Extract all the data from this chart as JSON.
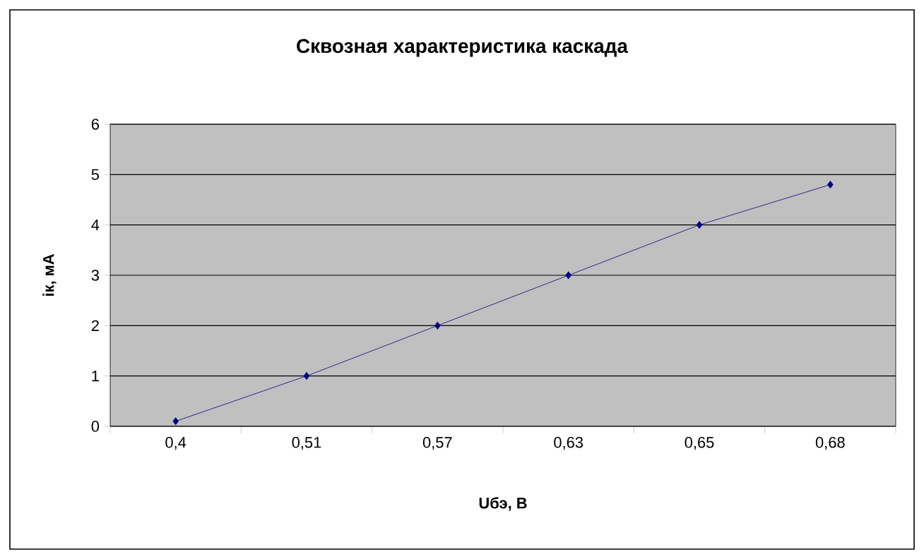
{
  "chart_data": {
    "type": "line",
    "title": "Сквозная характеристика каскада",
    "xlabel": "Uбэ, В",
    "ylabel": "iк, мА",
    "categories": [
      "0,4",
      "0,51",
      "0,57",
      "0,63",
      "0,65",
      "0,68"
    ],
    "series": [
      {
        "color": "#000080",
        "values": [
          0.1,
          1,
          2,
          3,
          4,
          4.8
        ]
      }
    ],
    "ylim": [
      0,
      6
    ],
    "yticks": [
      0,
      1,
      2,
      3,
      4,
      5,
      6
    ],
    "grid": "y",
    "marker": "diamond",
    "line_style": "solid"
  }
}
